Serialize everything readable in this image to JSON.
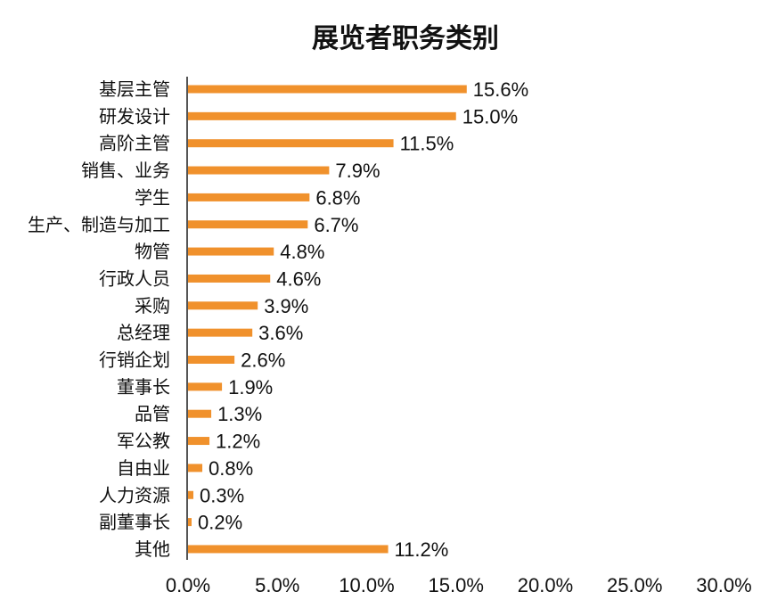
{
  "chart_data": {
    "type": "bar",
    "orientation": "horizontal",
    "title": "展览者职务类别",
    "xlabel": "",
    "ylabel": "",
    "xlim": [
      0,
      30
    ],
    "grid": false,
    "legend": "none",
    "bar_color": "#F0912C",
    "categories": [
      "基层主管",
      "研发设计",
      "高阶主管",
      "销售、业务",
      "学生",
      "生产、制造与加工",
      "物管",
      "行政人员",
      "采购",
      "总经理",
      "行销企划",
      "董事长",
      "品管",
      "军公教",
      "自由业",
      "人力资源",
      "副董事长",
      "其他"
    ],
    "values": [
      15.6,
      15.0,
      11.5,
      7.9,
      6.8,
      6.7,
      4.8,
      4.6,
      3.9,
      3.6,
      2.6,
      1.9,
      1.3,
      1.2,
      0.8,
      0.3,
      0.2,
      11.2
    ],
    "value_labels": [
      "15.6%",
      "15.0%",
      "11.5%",
      "7.9%",
      "6.8%",
      "6.7%",
      "4.8%",
      "4.6%",
      "3.9%",
      "3.6%",
      "2.6%",
      "1.9%",
      "1.3%",
      "1.2%",
      "0.8%",
      "0.3%",
      "0.2%",
      "11.2%"
    ],
    "x_ticks": [
      0,
      5,
      10,
      15,
      20,
      25,
      30
    ],
    "x_tick_labels": [
      "0.0%",
      "5.0%",
      "10.0%",
      "15.0%",
      "20.0%",
      "25.0%",
      "30.0%"
    ]
  }
}
